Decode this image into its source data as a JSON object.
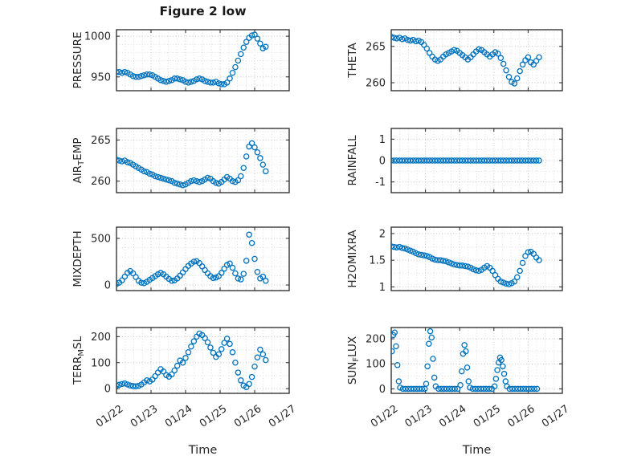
{
  "figure": {
    "title": "Figure 2 low",
    "xlabel": "Time",
    "marker_color": "#0072BD",
    "axis_color": "#262626",
    "grid_color": "#c3c3c3",
    "minor_grid_color": "#dedede",
    "background": "#ffffff"
  },
  "chart_data": {
    "type": "scatter",
    "title": "Figure 2 low",
    "xlabel": "Time",
    "marker": "open-circle",
    "x_unit": "days since 01/22",
    "x_ticks": {
      "values": [
        0,
        1,
        2,
        3,
        4,
        5
      ],
      "labels": [
        "01/22",
        "01/23",
        "01/24",
        "01/25",
        "01/26",
        "01/27"
      ]
    },
    "xlim": [
      0,
      5
    ],
    "x_minor_step": 0.25,
    "grid": "dotted-minor",
    "x_common": [
      0,
      0.08,
      0.16,
      0.24,
      0.32,
      0.4,
      0.48,
      0.56,
      0.64,
      0.72,
      0.8,
      0.88,
      0.96,
      1.04,
      1.12,
      1.2,
      1.28,
      1.36,
      1.44,
      1.52,
      1.6,
      1.68,
      1.76,
      1.84,
      1.92,
      2,
      2.08,
      2.16,
      2.24,
      2.32,
      2.4,
      2.48,
      2.56,
      2.64,
      2.72,
      2.8,
      2.88,
      2.96,
      3.04,
      3.12,
      3.2,
      3.28,
      3.36,
      3.44,
      3.52,
      3.6,
      3.68,
      3.76,
      3.84,
      3.92,
      4,
      4.08,
      4.16,
      4.24,
      4.32
    ],
    "subplots": [
      {
        "name": "PRESSURE",
        "row": 0,
        "col": 0,
        "ylabel_parts": [
          {
            "text": "PRESSURE"
          }
        ],
        "ylim": [
          933,
          1008
        ],
        "ytick_values": [
          950,
          1000
        ],
        "ytick_labels": [
          "950",
          "1000"
        ],
        "y_minor_step": 10,
        "y": [
          956,
          956,
          955,
          956,
          955,
          953,
          951,
          950,
          950,
          951,
          952,
          953,
          953,
          952,
          950,
          948,
          946,
          945,
          944,
          945,
          946,
          948,
          948,
          947,
          946,
          944,
          943,
          944,
          945,
          947,
          948,
          947,
          945,
          944,
          943,
          943,
          944,
          942,
          941,
          941,
          943,
          948,
          955,
          962,
          970,
          978,
          986,
          993,
          998,
          1001,
          1002,
          997,
          991,
          985,
          987
        ]
      },
      {
        "name": "THETA",
        "row": 0,
        "col": 1,
        "ylabel_parts": [
          {
            "text": "THETA"
          }
        ],
        "ylim": [
          258.9,
          267.3
        ],
        "ytick_values": [
          260,
          265
        ],
        "ytick_labels": [
          "260",
          "265"
        ],
        "y_minor_step": 1,
        "y": [
          266.3,
          266.2,
          266.1,
          266.2,
          266.0,
          266.1,
          265.9,
          265.8,
          265.9,
          265.7,
          265.8,
          265.6,
          265.2,
          264.7,
          264.1,
          263.6,
          263.2,
          263.0,
          263.2,
          263.6,
          263.9,
          264.1,
          264.3,
          264.5,
          264.4,
          264.1,
          263.8,
          263.5,
          263.2,
          263.5,
          263.9,
          264.3,
          264.6,
          264.5,
          264.2,
          263.9,
          263.6,
          263.9,
          264.2,
          264.0,
          263.4,
          262.6,
          261.7,
          260.8,
          260.1,
          259.9,
          260.6,
          261.6,
          262.5,
          263.1,
          263.5,
          262.8,
          262.5,
          263.0,
          263.5
        ]
      },
      {
        "name": "AIR_TEMP",
        "row": 1,
        "col": 0,
        "ylabel_parts": [
          {
            "text": "AIR"
          },
          {
            "text": "T",
            "sub": true
          },
          {
            "text": "EMP"
          }
        ],
        "ylim": [
          258.6,
          266.4
        ],
        "ytick_values": [
          260,
          265
        ],
        "ytick_labels": [
          "260",
          "265"
        ],
        "y_minor_step": 1,
        "y": [
          262.6,
          262.5,
          262.4,
          262.5,
          262.3,
          262.2,
          262.0,
          261.8,
          261.6,
          261.4,
          261.2,
          261.1,
          260.9,
          260.8,
          260.6,
          260.5,
          260.4,
          260.3,
          260.2,
          260.1,
          260.0,
          259.8,
          259.7,
          259.6,
          259.5,
          259.6,
          259.8,
          260.0,
          260.1,
          260.0,
          259.9,
          260.0,
          260.2,
          260.4,
          260.3,
          260.0,
          259.8,
          259.7,
          259.9,
          260.2,
          260.5,
          260.3,
          260.0,
          259.9,
          260.1,
          260.6,
          261.6,
          263.0,
          264.2,
          264.6,
          264.1,
          263.5,
          262.8,
          262.0,
          261.2
        ]
      },
      {
        "name": "RAINFALL",
        "row": 1,
        "col": 1,
        "ylabel_parts": [
          {
            "text": "RAINFALL"
          }
        ],
        "ylim": [
          -1.5,
          1.5
        ],
        "ytick_values": [
          -1,
          0,
          1
        ],
        "ytick_labels": [
          "-1",
          "0",
          "1"
        ],
        "y_minor_step": 0.5,
        "y": [
          0,
          0,
          0,
          0,
          0,
          0,
          0,
          0,
          0,
          0,
          0,
          0,
          0,
          0,
          0,
          0,
          0,
          0,
          0,
          0,
          0,
          0,
          0,
          0,
          0,
          0,
          0,
          0,
          0,
          0,
          0,
          0,
          0,
          0,
          0,
          0,
          0,
          0,
          0,
          0,
          0,
          0,
          0,
          0,
          0,
          0,
          0,
          0,
          0,
          0,
          0,
          0,
          0,
          0,
          0
        ]
      },
      {
        "name": "MIXDEPTH",
        "row": 2,
        "col": 0,
        "ylabel_parts": [
          {
            "text": "MIXDEPTH"
          }
        ],
        "ylim": [
          -60,
          620
        ],
        "ytick_values": [
          0,
          500
        ],
        "ytick_labels": [
          "0",
          "500"
        ],
        "y_minor_step": 100,
        "y": [
          10,
          25,
          50,
          90,
          130,
          150,
          125,
          85,
          45,
          25,
          20,
          35,
          55,
          75,
          95,
          115,
          130,
          115,
          90,
          65,
          45,
          50,
          70,
          100,
          135,
          170,
          205,
          230,
          250,
          255,
          235,
          200,
          160,
          125,
          95,
          75,
          80,
          95,
          130,
          175,
          215,
          230,
          185,
          125,
          70,
          60,
          120,
          260,
          540,
          450,
          280,
          140,
          70,
          90,
          45
        ]
      },
      {
        "name": "H2OMIXRA",
        "row": 2,
        "col": 1,
        "ylabel_parts": [
          {
            "text": "H2OMIXRA"
          }
        ],
        "ylim": [
          0.93,
          2.12
        ],
        "ytick_values": [
          1,
          1.5,
          2
        ],
        "ytick_labels": [
          "1",
          "1.5",
          "2"
        ],
        "y_minor_step": 0.25,
        "y": [
          1.76,
          1.75,
          1.74,
          1.75,
          1.73,
          1.72,
          1.7,
          1.68,
          1.66,
          1.63,
          1.61,
          1.6,
          1.59,
          1.58,
          1.56,
          1.53,
          1.51,
          1.5,
          1.5,
          1.49,
          1.48,
          1.46,
          1.44,
          1.42,
          1.41,
          1.4,
          1.4,
          1.39,
          1.38,
          1.36,
          1.33,
          1.31,
          1.3,
          1.32,
          1.36,
          1.39,
          1.36,
          1.3,
          1.22,
          1.15,
          1.1,
          1.08,
          1.06,
          1.05,
          1.07,
          1.1,
          1.18,
          1.3,
          1.45,
          1.58,
          1.65,
          1.66,
          1.62,
          1.55,
          1.5
        ]
      },
      {
        "name": "TERR_MSL",
        "row": 3,
        "col": 0,
        "ylabel_parts": [
          {
            "text": "TERR"
          },
          {
            "text": "M",
            "sub": true
          },
          {
            "text": "SL"
          }
        ],
        "ylim": [
          -18,
          235
        ],
        "ytick_values": [
          0,
          100,
          200
        ],
        "ytick_labels": [
          "0",
          "100",
          "200"
        ],
        "y_minor_step": 50,
        "y": [
          12,
          15,
          18,
          20,
          16,
          12,
          10,
          9,
          11,
          16,
          24,
          32,
          28,
          35,
          48,
          62,
          75,
          66,
          52,
          46,
          55,
          70,
          88,
          108,
          100,
          118,
          140,
          162,
          182,
          200,
          212,
          206,
          194,
          178,
          158,
          138,
          122,
          132,
          152,
          176,
          192,
          172,
          140,
          100,
          62,
          32,
          12,
          6,
          18,
          45,
          85,
          120,
          150,
          132,
          110
        ]
      },
      {
        "name": "SUN_FLUX",
        "row": 3,
        "col": 1,
        "ylabel_parts": [
          {
            "text": "SUN"
          },
          {
            "text": "F",
            "sub": true
          },
          {
            "text": "LUX"
          }
        ],
        "ylim": [
          -18,
          245
        ],
        "ytick_values": [
          0,
          100,
          200
        ],
        "ytick_labels": [
          "0",
          "100",
          "200"
        ],
        "y_minor_step": 50,
        "x": [
          0.02,
          0.06,
          0.1,
          0.14,
          0.18,
          0.22,
          0.26,
          0.34,
          0.42,
          0.5,
          0.58,
          0.66,
          0.74,
          0.82,
          0.9,
          0.98,
          1.02,
          1.06,
          1.1,
          1.14,
          1.18,
          1.22,
          1.26,
          1.3,
          1.38,
          1.46,
          1.54,
          1.62,
          1.7,
          1.78,
          1.86,
          1.94,
          2.02,
          2.06,
          2.1,
          2.14,
          2.18,
          2.22,
          2.26,
          2.3,
          2.38,
          2.46,
          2.54,
          2.62,
          2.7,
          2.78,
          2.86,
          2.94,
          3.02,
          3.06,
          3.1,
          3.14,
          3.18,
          3.22,
          3.26,
          3.3,
          3.34,
          3.38,
          3.46,
          3.54,
          3.62,
          3.7,
          3.78,
          3.86,
          3.94,
          4.02,
          4.1,
          4.18,
          4.26
        ],
        "y": [
          150,
          215,
          225,
          170,
          95,
          30,
          5,
          0,
          0,
          0,
          0,
          0,
          0,
          0,
          0,
          0,
          20,
          90,
          180,
          230,
          205,
          120,
          45,
          10,
          0,
          0,
          0,
          0,
          0,
          0,
          0,
          0,
          15,
          70,
          140,
          175,
          150,
          85,
          30,
          5,
          0,
          0,
          0,
          0,
          0,
          0,
          0,
          0,
          10,
          40,
          75,
          105,
          125,
          115,
          90,
          60,
          30,
          10,
          0,
          0,
          0,
          0,
          0,
          0,
          0,
          0,
          0,
          0,
          0
        ]
      }
    ]
  }
}
